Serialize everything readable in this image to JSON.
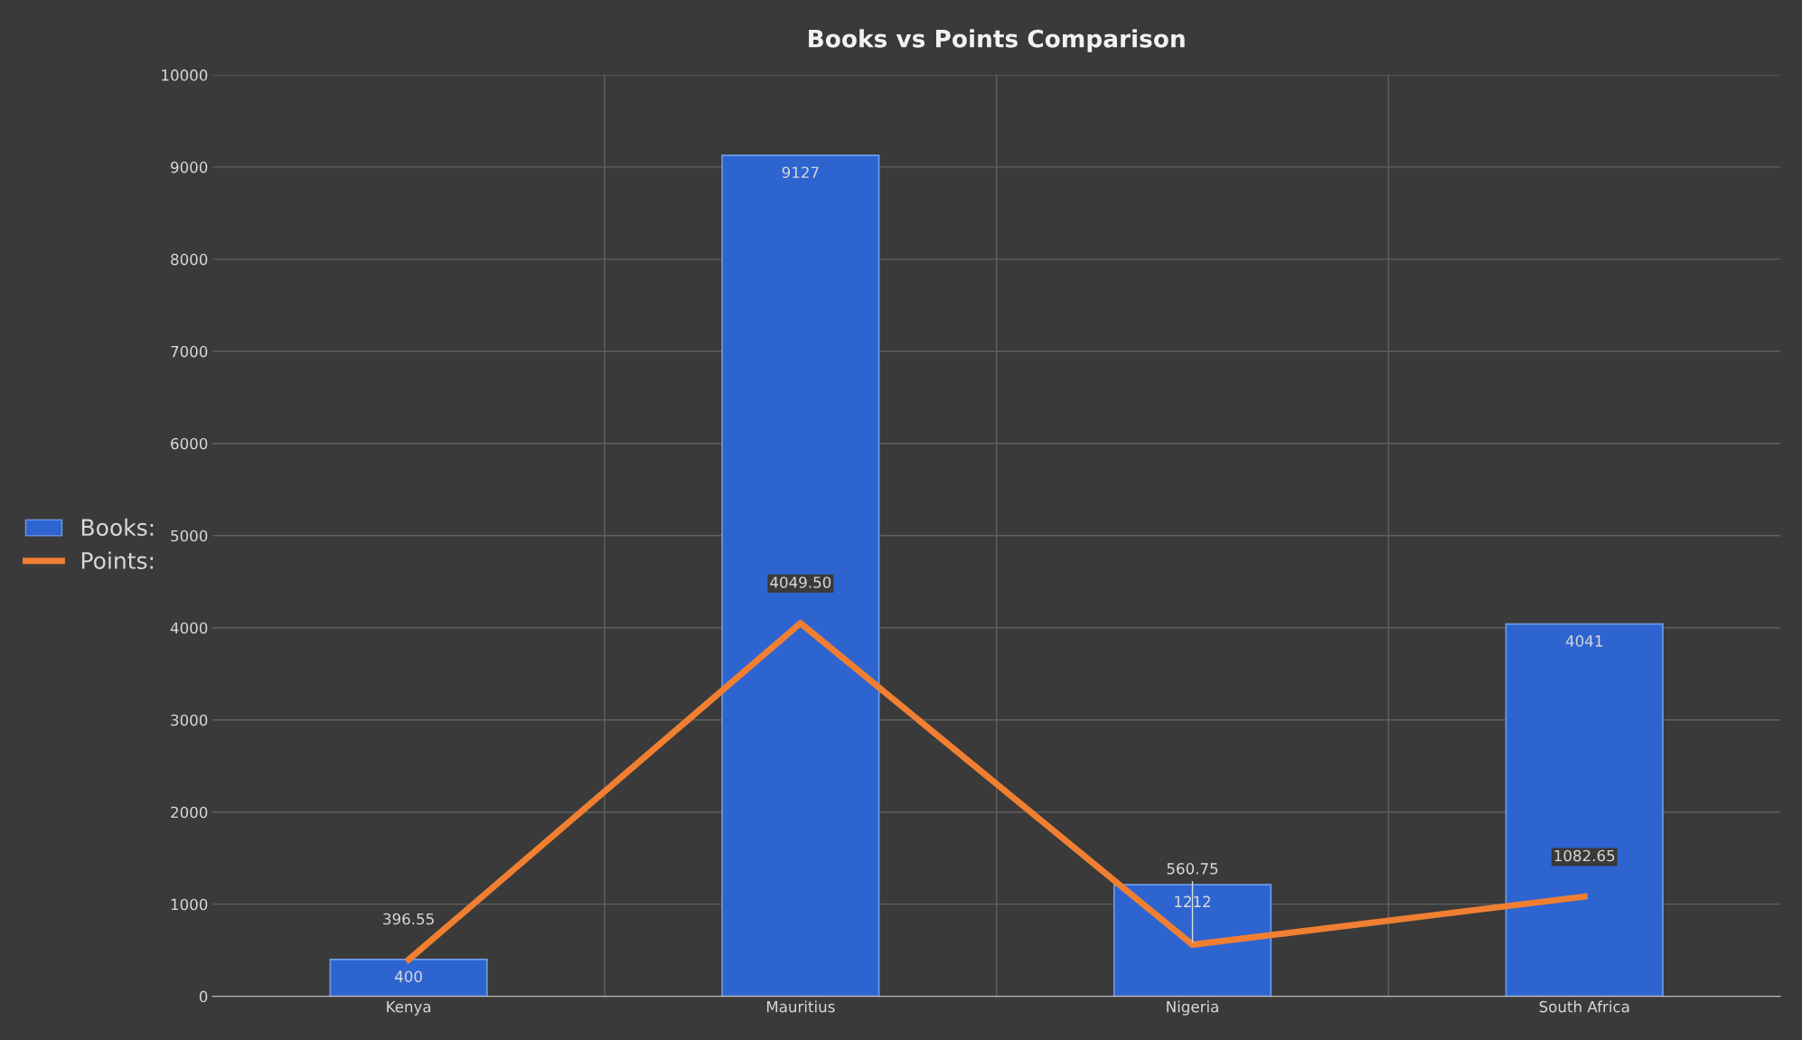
{
  "chart_data": {
    "type": "bar",
    "title": "Books vs Points Comparison",
    "categories": [
      "Kenya",
      "Mauritius",
      "Nigeria",
      "South Africa"
    ],
    "series": [
      {
        "name": "Books:",
        "color": "#2e64d0",
        "values": [
          400,
          9127,
          1212,
          4041
        ],
        "value_labels": [
          "400",
          "9127",
          "1212",
          "4041"
        ]
      },
      {
        "name": "Points:",
        "type": "line",
        "color": "#f07f32",
        "values": [
          396.55,
          4049.5,
          560.75,
          1082.65
        ],
        "value_labels": [
          "396.55",
          "4049.50",
          "560.75",
          "1082.65"
        ]
      }
    ],
    "ylim": [
      0,
      10000
    ],
    "yticks": [
      0,
      1000,
      2000,
      3000,
      4000,
      5000,
      6000,
      7000,
      8000,
      9000,
      10000
    ],
    "grid": true,
    "legend": "left",
    "marker": "none",
    "line_style": "solid"
  }
}
